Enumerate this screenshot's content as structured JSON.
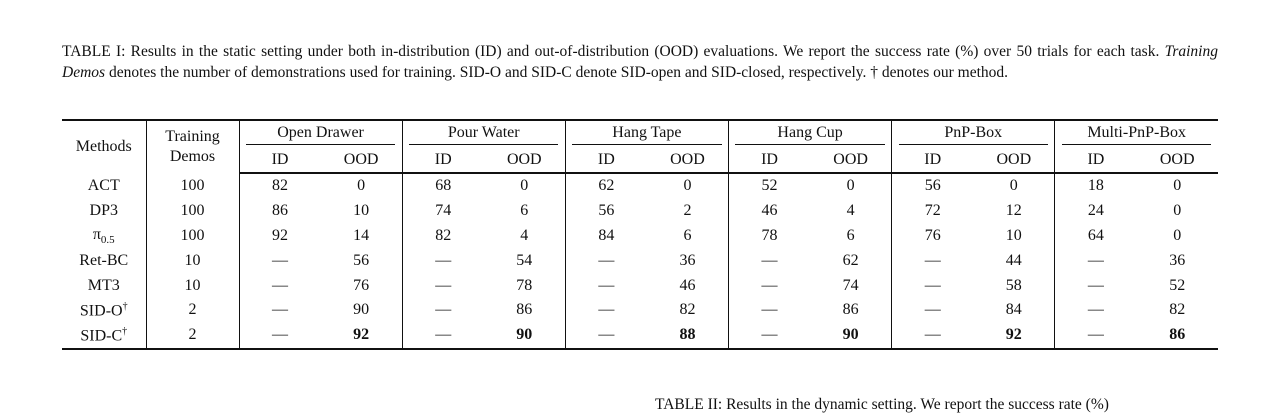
{
  "caption": {
    "lead": "TABLE I: Results in the static setting under both in-distribution (ID) and out-of-distribution (OOD) evaluations. We report the success rate (%) over 50 trials for each task. ",
    "emph": "Training Demos",
    "tail": " denotes the number of demonstrations used for training. SID-O and SID-C denote SID-open and SID-closed, respectively. † denotes our method."
  },
  "table": {
    "header": {
      "methods": "Methods",
      "demos": "Training Demos",
      "tasks": [
        "Open Drawer",
        "Pour Water",
        "Hang Tape",
        "Hang Cup",
        "PnP-Box",
        "Multi-PnP-Box"
      ],
      "id": "ID",
      "ood": "OOD"
    },
    "rows": [
      {
        "method": "ACT",
        "demos": 100,
        "values": [
          82,
          0,
          68,
          0,
          62,
          0,
          52,
          0,
          56,
          0,
          18,
          0
        ]
      },
      {
        "method": "DP3",
        "demos": 100,
        "values": [
          86,
          10,
          74,
          6,
          56,
          2,
          46,
          4,
          72,
          12,
          24,
          0
        ]
      },
      {
        "method": "π",
        "sub": "0.5",
        "demos": 100,
        "values": [
          92,
          14,
          82,
          4,
          84,
          6,
          78,
          6,
          76,
          10,
          64,
          0
        ]
      },
      {
        "method": "Ret-BC",
        "demos": 10,
        "values": [
          "—",
          56,
          "—",
          54,
          "—",
          36,
          "—",
          62,
          "—",
          44,
          "—",
          36
        ]
      },
      {
        "method": "MT3",
        "demos": 10,
        "values": [
          "—",
          76,
          "—",
          78,
          "—",
          46,
          "—",
          74,
          "—",
          58,
          "—",
          52
        ]
      },
      {
        "method": "SID-O",
        "sup": "†",
        "demos": 2,
        "values": [
          "—",
          90,
          "—",
          86,
          "—",
          82,
          "—",
          86,
          "—",
          84,
          "—",
          82
        ]
      },
      {
        "method": "SID-C",
        "sup": "†",
        "demos": 2,
        "values": [
          "—",
          92,
          "—",
          90,
          "—",
          88,
          "—",
          90,
          "—",
          92,
          "—",
          86
        ]
      }
    ]
  },
  "next_caption": "TABLE II: Results in the dynamic setting. We report the success rate (%)"
}
